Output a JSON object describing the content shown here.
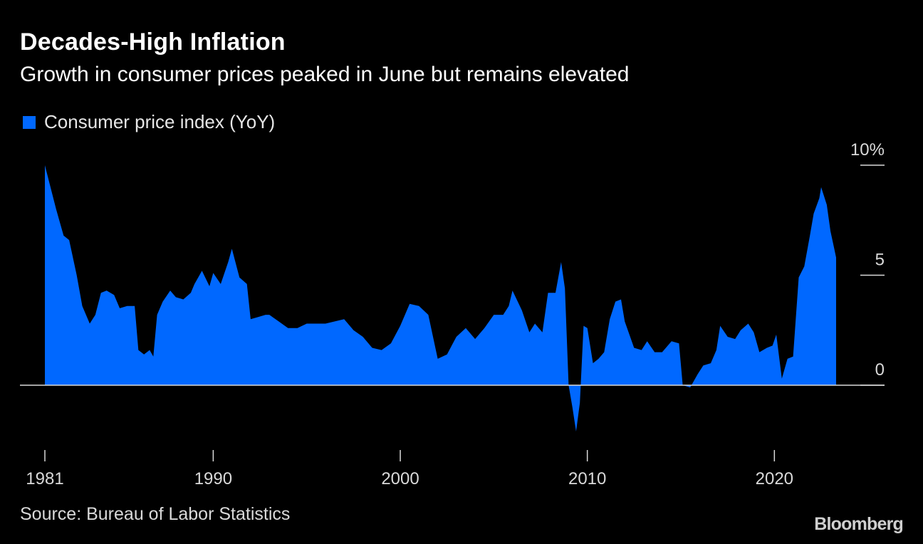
{
  "title": "Decades-High Inflation",
  "subtitle": "Growth in consumer prices peaked in June but remains elevated",
  "legend": {
    "label": "Consumer price index (YoY)",
    "color": "#0068ff"
  },
  "source": "Source: Bureau of Labor Statistics",
  "brand": "Bloomberg",
  "chart_data": {
    "type": "area",
    "series": [
      {
        "name": "Consumer price index (YoY)",
        "color": "#0068ff"
      }
    ],
    "x": [
      1981.0,
      1981.3,
      1981.6,
      1982.0,
      1982.3,
      1982.7,
      1983.0,
      1983.4,
      1983.7,
      1984.0,
      1984.3,
      1984.7,
      1985.0,
      1985.4,
      1985.8,
      1986.0,
      1986.3,
      1986.6,
      1986.8,
      1987.0,
      1987.3,
      1987.7,
      1988.0,
      1988.4,
      1988.8,
      1989.0,
      1989.4,
      1989.8,
      1990.0,
      1990.4,
      1990.8,
      1991.0,
      1991.4,
      1991.8,
      1992.0,
      1992.4,
      1992.8,
      1993.0,
      1993.5,
      1994.0,
      1994.5,
      1995.0,
      1995.5,
      1996.0,
      1996.5,
      1997.0,
      1997.5,
      1998.0,
      1998.5,
      1999.0,
      1999.5,
      2000.0,
      2000.5,
      2001.0,
      2001.5,
      2002.0,
      2002.5,
      2003.0,
      2003.5,
      2004.0,
      2004.5,
      2005.0,
      2005.5,
      2005.8,
      2006.0,
      2006.5,
      2006.9,
      2007.2,
      2007.6,
      2007.9,
      2008.3,
      2008.6,
      2008.8,
      2009.0,
      2009.2,
      2009.4,
      2009.6,
      2009.8,
      2010.0,
      2010.3,
      2010.6,
      2010.9,
      2011.2,
      2011.5,
      2011.8,
      2012.0,
      2012.5,
      2012.9,
      2013.2,
      2013.6,
      2014.0,
      2014.5,
      2014.9,
      2015.1,
      2015.5,
      2015.9,
      2016.2,
      2016.6,
      2016.9,
      2017.1,
      2017.5,
      2017.9,
      2018.2,
      2018.6,
      2018.9,
      2019.2,
      2019.6,
      2019.9,
      2020.1,
      2020.4,
      2020.7,
      2021.0,
      2021.3,
      2021.6,
      2021.9,
      2022.1,
      2022.4,
      2022.5,
      2022.8,
      2023.0,
      2023.2,
      2023.3
    ],
    "values": [
      10.0,
      9.0,
      8.0,
      6.8,
      6.6,
      5.0,
      3.6,
      2.8,
      3.2,
      4.2,
      4.3,
      4.1,
      3.5,
      3.6,
      3.6,
      1.6,
      1.4,
      1.6,
      1.3,
      3.2,
      3.8,
      4.3,
      4.0,
      3.9,
      4.2,
      4.6,
      5.2,
      4.5,
      5.1,
      4.6,
      5.6,
      6.2,
      4.9,
      4.6,
      3.0,
      3.1,
      3.2,
      3.2,
      2.9,
      2.6,
      2.6,
      2.8,
      2.8,
      2.8,
      2.9,
      3.0,
      2.5,
      2.2,
      1.7,
      1.6,
      1.9,
      2.7,
      3.7,
      3.6,
      3.2,
      1.2,
      1.4,
      2.2,
      2.6,
      2.1,
      2.6,
      3.2,
      3.2,
      3.6,
      4.3,
      3.4,
      2.4,
      2.8,
      2.4,
      4.2,
      4.2,
      5.6,
      4.4,
      0.0,
      -1.0,
      -2.1,
      -0.8,
      2.7,
      2.6,
      1.0,
      1.2,
      1.5,
      3.0,
      3.8,
      3.9,
      2.9,
      1.7,
      1.6,
      2.0,
      1.5,
      1.5,
      2.0,
      1.9,
      0.0,
      -0.1,
      0.5,
      0.9,
      1.0,
      1.6,
      2.7,
      2.2,
      2.1,
      2.5,
      2.8,
      2.4,
      1.5,
      1.7,
      1.8,
      2.3,
      0.3,
      1.2,
      1.3,
      4.9,
      5.4,
      6.8,
      7.8,
      8.5,
      9.0,
      8.2,
      7.0,
      6.2,
      5.8
    ],
    "xlim": [
      1981,
      2023.3
    ],
    "xticks": [
      1981,
      1990,
      2000,
      2010,
      2020
    ],
    "xtick_labels": [
      "1981",
      "1990",
      "2000",
      "2010",
      "2020"
    ],
    "ylim": [
      -2.1,
      10
    ],
    "yticks": [
      0,
      5,
      10
    ],
    "ytick_labels": [
      "0",
      "5",
      "10%"
    ],
    "legend_position": "top-left"
  }
}
